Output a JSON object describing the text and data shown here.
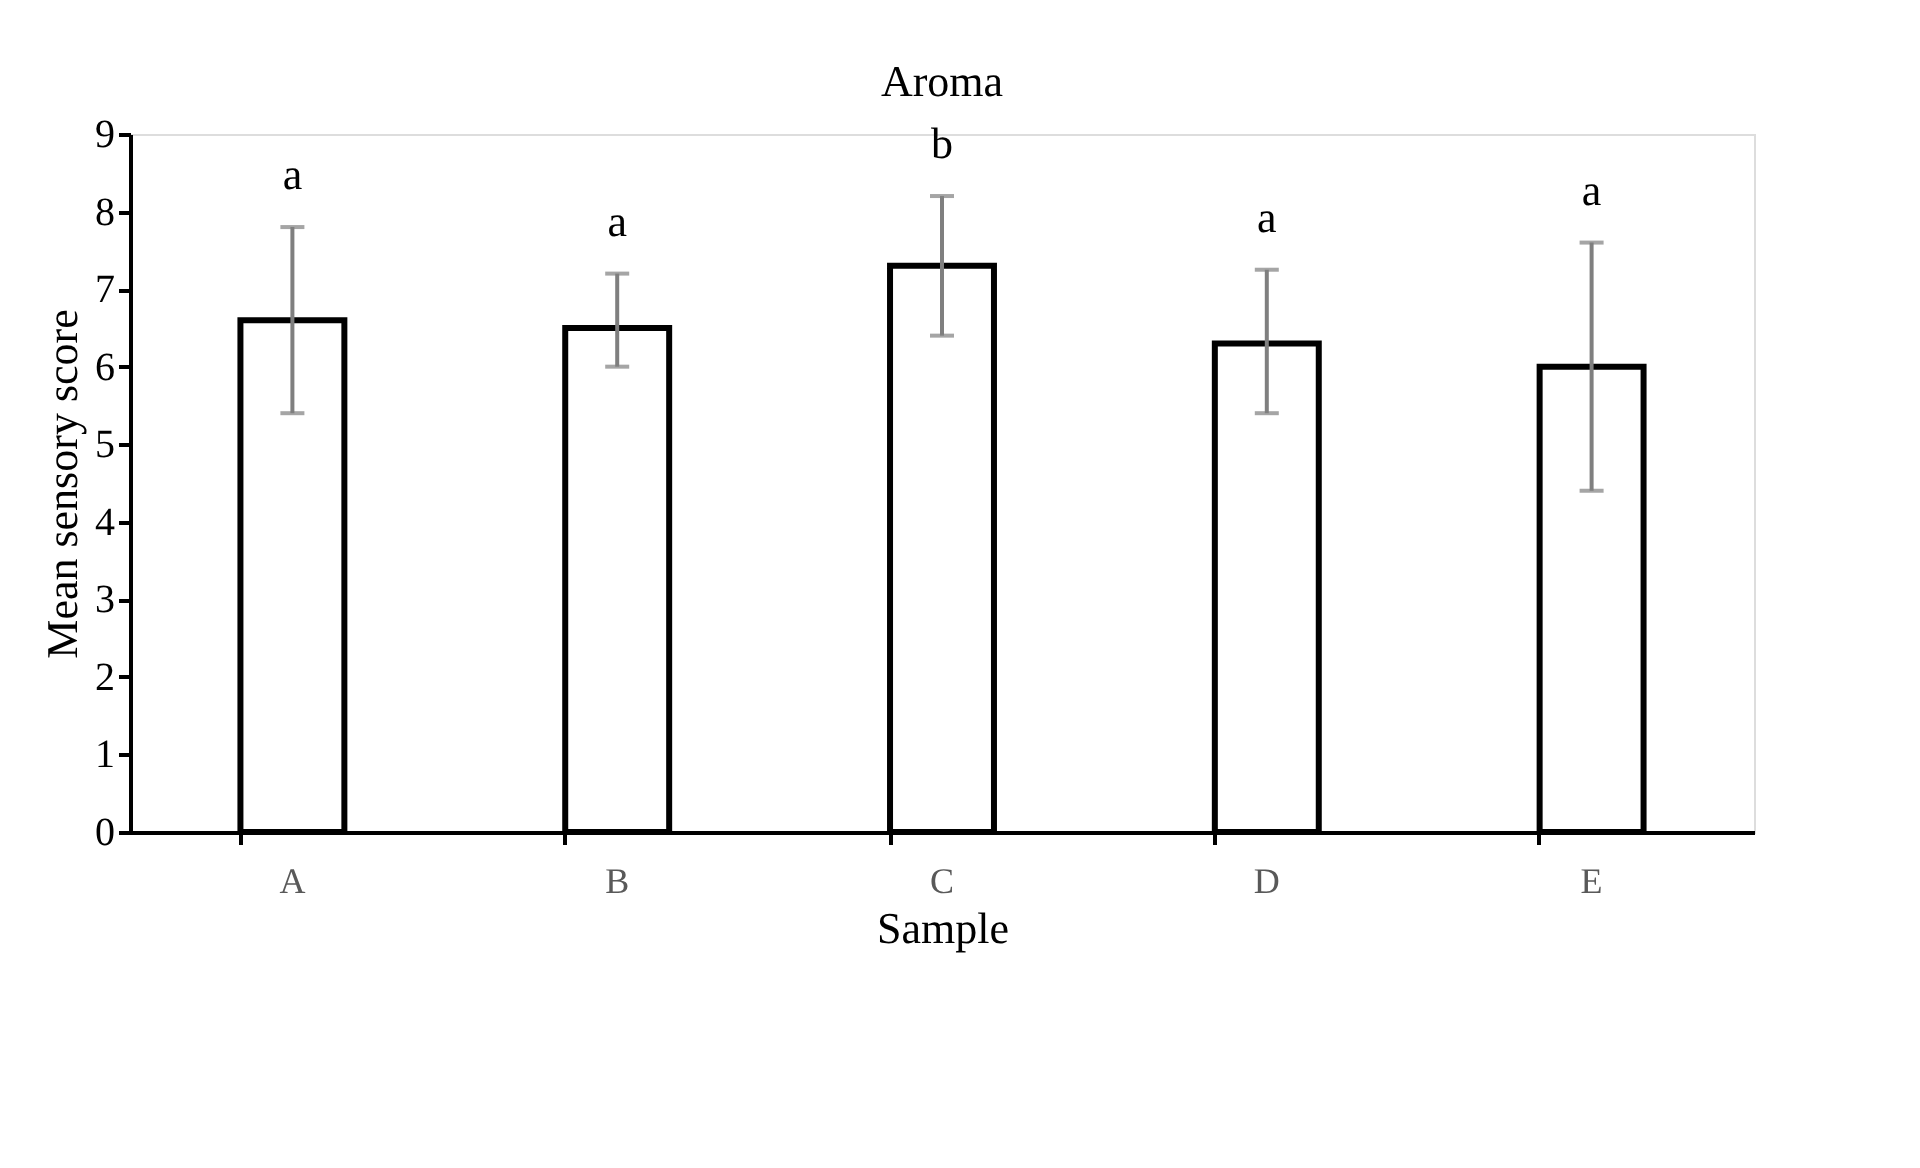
{
  "chart_data": {
    "type": "bar",
    "title": "Aroma",
    "xlabel": "Sample",
    "ylabel": "Mean sensory score",
    "categories": [
      "A",
      "B",
      "C",
      "D",
      "E"
    ],
    "values": [
      6.6,
      6.5,
      7.3,
      6.3,
      6.0
    ],
    "colors": [
      "#ffffff",
      "#ffffff",
      "#ffffff",
      "#ffffff",
      "#ffffff"
    ],
    "errors": [
      [
        5.4,
        7.8
      ],
      [
        6.0,
        7.2
      ],
      [
        6.4,
        8.2
      ],
      [
        5.4,
        7.25
      ],
      [
        4.4,
        7.6
      ]
    ],
    "ylim": [
      0,
      9
    ],
    "yticks": [
      0,
      1,
      2,
      3,
      4,
      5,
      6,
      7,
      8,
      9
    ],
    "grid": false,
    "annotations": [
      "a",
      "a",
      "b",
      "a",
      "a"
    ]
  }
}
